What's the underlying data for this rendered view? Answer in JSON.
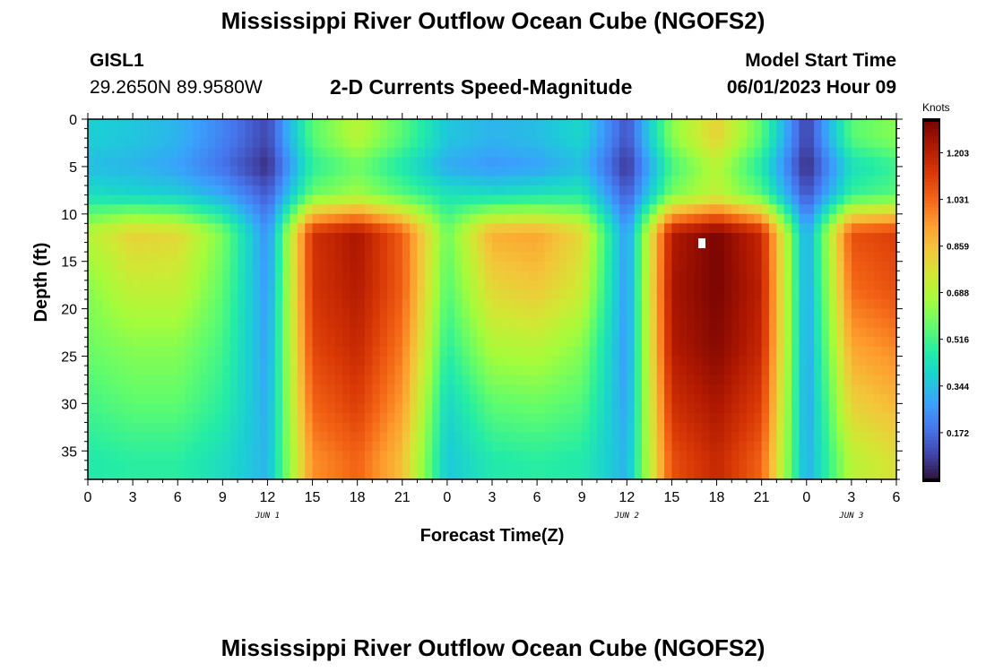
{
  "header": {
    "title": "Mississippi River Outflow Ocean Cube (NGOFS2)",
    "station_id": "GISL1",
    "station_coords": "29.2650N  89.9580W",
    "subtitle": "2-D Currents Speed-Magnitude",
    "model_start_label": "Model Start Time",
    "model_start_value": "06/01/2023 Hour 09"
  },
  "footer": {
    "title": "Mississippi River Outflow Ocean Cube (NGOFS2)"
  },
  "chart_data": {
    "type": "heatmap",
    "xlabel": "Forecast Time(Z)",
    "ylabel": "Depth (ft)",
    "x_range_hours": [
      0,
      54
    ],
    "y_range_ft": [
      0,
      38
    ],
    "y_inverted": true,
    "x_tick_labels": [
      "0",
      "3",
      "6",
      "9",
      "12",
      "15",
      "18",
      "21",
      "0",
      "3",
      "6",
      "9",
      "12",
      "15",
      "18",
      "21",
      "0",
      "3",
      "6"
    ],
    "y_ticks": [
      0,
      5,
      10,
      15,
      20,
      25,
      30,
      35
    ],
    "date_labels": [
      {
        "text": "JUN 1",
        "hour": 12
      },
      {
        "text": "JUN 2",
        "hour": 36
      },
      {
        "text": "JUN 3",
        "hour": 51
      }
    ],
    "colorbar": {
      "unit": "Knots",
      "min": 0.0,
      "max": 1.32,
      "tick_values": [
        1.203,
        1.031,
        0.859,
        0.688,
        0.516,
        0.344,
        0.172
      ],
      "tick_labels": [
        "1.203",
        "1.031",
        "0.859",
        "0.688",
        "0.516",
        "0.344",
        "0.172"
      ]
    },
    "colormap": [
      "#30123b",
      "#4145ab",
      "#4675ed",
      "#39a2fc",
      "#1bcfd4",
      "#24eca6",
      "#61fc6c",
      "#a4fc3b",
      "#d1e834",
      "#f3c63a",
      "#fe9b2d",
      "#f36315",
      "#d93806",
      "#b11901",
      "#7a0403"
    ],
    "approx_speed_knots_hourly": {
      "note_depths_ft": [
        2,
        5,
        8,
        12,
        18,
        24,
        30,
        36
      ],
      "hours": [
        0,
        3,
        6,
        9,
        12,
        15,
        18,
        21,
        24,
        27,
        30,
        33,
        36,
        39,
        42,
        45,
        48,
        51,
        54
      ],
      "values": [
        [
          0.38,
          0.36,
          0.32,
          0.22,
          0.1,
          0.55,
          0.7,
          0.55,
          0.36,
          0.32,
          0.34,
          0.4,
          0.12,
          0.62,
          0.82,
          0.55,
          0.08,
          0.55,
          0.62
        ],
        [
          0.34,
          0.32,
          0.28,
          0.18,
          0.05,
          0.48,
          0.58,
          0.45,
          0.3,
          0.26,
          0.28,
          0.34,
          0.06,
          0.52,
          0.7,
          0.45,
          0.04,
          0.42,
          0.5
        ],
        [
          0.42,
          0.4,
          0.38,
          0.3,
          0.14,
          0.58,
          0.66,
          0.55,
          0.44,
          0.42,
          0.44,
          0.46,
          0.14,
          0.6,
          0.72,
          0.55,
          0.12,
          0.5,
          0.55
        ],
        [
          0.7,
          0.82,
          0.8,
          0.6,
          0.24,
          1.15,
          1.24,
          1.05,
          0.58,
          0.9,
          0.92,
          0.8,
          0.26,
          1.22,
          1.32,
          1.18,
          0.28,
          1.08,
          1.12
        ],
        [
          0.62,
          0.72,
          0.72,
          0.56,
          0.26,
          1.14,
          1.22,
          1.05,
          0.54,
          0.8,
          0.84,
          0.74,
          0.26,
          1.24,
          1.32,
          1.2,
          0.28,
          1.02,
          1.08
        ],
        [
          0.58,
          0.62,
          0.62,
          0.52,
          0.28,
          1.1,
          1.18,
          1.0,
          0.48,
          0.68,
          0.7,
          0.62,
          0.26,
          1.22,
          1.3,
          1.18,
          0.28,
          0.92,
          0.98
        ],
        [
          0.52,
          0.56,
          0.56,
          0.48,
          0.3,
          1.04,
          1.12,
          0.94,
          0.4,
          0.56,
          0.58,
          0.54,
          0.28,
          1.16,
          1.24,
          1.12,
          0.28,
          0.82,
          0.88
        ],
        [
          0.46,
          0.48,
          0.48,
          0.42,
          0.32,
          0.96,
          1.04,
          0.86,
          0.36,
          0.46,
          0.48,
          0.46,
          0.32,
          1.08,
          1.18,
          1.04,
          0.3,
          0.7,
          0.78
        ]
      ]
    }
  }
}
